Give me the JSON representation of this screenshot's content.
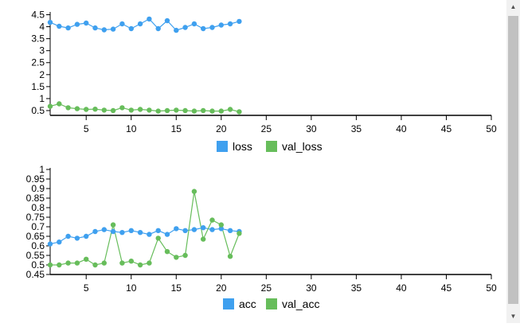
{
  "colors": {
    "series1": "#3fa0ef",
    "series2": "#67bd5b",
    "axis": "#000000"
  },
  "chart_data": [
    {
      "type": "line",
      "xlim": [
        1,
        50
      ],
      "ylim": [
        0.3,
        4.55
      ],
      "x_ticks": [
        5,
        10,
        15,
        20,
        25,
        30,
        35,
        40,
        45,
        50
      ],
      "y_ticks": [
        0.5,
        1,
        1.5,
        2,
        2.5,
        3,
        3.5,
        4,
        4.5
      ],
      "x": [
        1,
        2,
        3,
        4,
        5,
        6,
        7,
        8,
        9,
        10,
        11,
        12,
        13,
        14,
        15,
        16,
        17,
        18,
        19,
        20,
        21,
        22
      ],
      "series": [
        {
          "name": "loss",
          "color": "#3fa0ef",
          "values": [
            4.18,
            4.02,
            3.95,
            4.1,
            4.15,
            3.95,
            3.87,
            3.9,
            4.12,
            3.92,
            4.12,
            4.32,
            3.92,
            4.25,
            3.85,
            3.97,
            4.12,
            3.92,
            3.97,
            4.07,
            4.12,
            4.22
          ]
        },
        {
          "name": "val_loss",
          "color": "#67bd5b",
          "values": [
            0.68,
            0.78,
            0.62,
            0.58,
            0.55,
            0.56,
            0.52,
            0.5,
            0.62,
            0.52,
            0.55,
            0.52,
            0.48,
            0.5,
            0.52,
            0.5,
            0.48,
            0.5,
            0.48,
            0.48,
            0.55,
            0.45
          ]
        }
      ],
      "legend": [
        "loss",
        "val_loss"
      ]
    },
    {
      "type": "line",
      "xlim": [
        1,
        50
      ],
      "ylim": [
        0.45,
        1.0
      ],
      "x_ticks": [
        5,
        10,
        15,
        20,
        25,
        30,
        35,
        40,
        45,
        50
      ],
      "y_ticks": [
        0.45,
        0.5,
        0.55,
        0.6,
        0.65,
        0.7,
        0.75,
        0.8,
        0.85,
        0.9,
        0.95,
        1
      ],
      "x": [
        1,
        2,
        3,
        4,
        5,
        6,
        7,
        8,
        9,
        10,
        11,
        12,
        13,
        14,
        15,
        16,
        17,
        18,
        19,
        20,
        21,
        22
      ],
      "series": [
        {
          "name": "acc",
          "color": "#3fa0ef",
          "values": [
            0.61,
            0.62,
            0.65,
            0.64,
            0.65,
            0.675,
            0.685,
            0.675,
            0.67,
            0.68,
            0.67,
            0.66,
            0.68,
            0.66,
            0.69,
            0.68,
            0.685,
            0.695,
            0.685,
            0.69,
            0.68,
            0.675
          ]
        },
        {
          "name": "val_acc",
          "color": "#67bd5b",
          "values": [
            0.5,
            0.5,
            0.51,
            0.51,
            0.53,
            0.5,
            0.51,
            0.71,
            0.51,
            0.52,
            0.5,
            0.51,
            0.64,
            0.57,
            0.54,
            0.55,
            0.885,
            0.635,
            0.735,
            0.71,
            0.545,
            0.665
          ]
        }
      ],
      "legend": [
        "acc",
        "val_acc"
      ]
    }
  ]
}
